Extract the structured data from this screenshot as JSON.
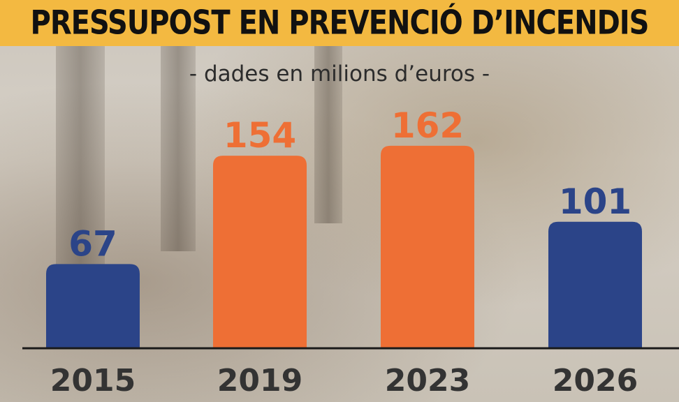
{
  "header": {
    "title": "PRESSUPOST EN PREVENCIÓ D’INCENDIS",
    "subtitle": "- dades en milions d’euros -"
  },
  "colors": {
    "header_band": "#f3b941",
    "blue": "#2b4488",
    "orange": "#ee6f35",
    "axis": "#1a1a1a",
    "year_text": "#333333"
  },
  "chart_data": {
    "type": "bar",
    "categories": [
      "2015",
      "2019",
      "2023",
      "2026"
    ],
    "values": [
      67,
      154,
      162,
      101
    ],
    "value_labels": [
      "67",
      "154",
      "162",
      "101"
    ],
    "bar_colors": [
      "#2b4488",
      "#ee6f35",
      "#ee6f35",
      "#2b4488"
    ],
    "title": "PRESSUPOST EN PREVENCIÓ D’INCENDIS",
    "subtitle": "- dades en milions d’euros -",
    "ylim": [
      0,
      195
    ],
    "grid": false,
    "legend": "none"
  }
}
